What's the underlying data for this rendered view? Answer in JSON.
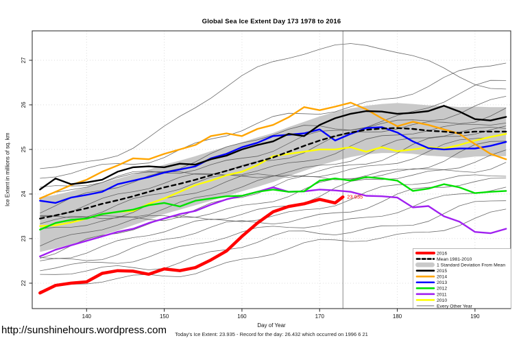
{
  "header": {
    "title": "Global Sea Ice Extent Day 173 1978 to 2016"
  },
  "footer": {
    "url": "http://sunshinehours.wordpress.com",
    "note": "Today's Ice Extent: 23.935  - Record for the day: 26.432 which occurred on 1996 6 21"
  },
  "chart_data": {
    "type": "line",
    "title": "Global Sea Ice Extent Day 173 1978 to 2016",
    "xlabel": "Day of Year",
    "ylabel": "Ice Extent in millions of sq. km",
    "x_ticks": [
      140,
      150,
      160,
      170,
      180,
      190
    ],
    "y_ticks": [
      22,
      23,
      24,
      25,
      26,
      27
    ],
    "xlim": [
      133,
      194.6
    ],
    "ylim": [
      21.43,
      27.66
    ],
    "grid": "dotted",
    "grid_color": "#dcdcdc",
    "frame_color": "#222222",
    "x": [
      134,
      136,
      138,
      140,
      142,
      144,
      146,
      148,
      150,
      152,
      154,
      156,
      158,
      160,
      162,
      164,
      166,
      168,
      170,
      172,
      174,
      176,
      178,
      180,
      182,
      184,
      186,
      188,
      190,
      192,
      194
    ],
    "vline": {
      "x": 173,
      "color": "#888888"
    },
    "annotation": {
      "text": "23.935",
      "x": 173,
      "y": 23.935,
      "color": "#ff0000"
    },
    "band": {
      "label": "1 Standard Deviation From Mean",
      "color": "#c9c9c9",
      "upper": [
        23.92,
        23.98,
        24.06,
        24.15,
        24.25,
        24.34,
        24.44,
        24.55,
        24.66,
        24.75,
        24.85,
        24.96,
        25.06,
        25.16,
        25.27,
        25.37,
        25.5,
        25.62,
        25.74,
        25.84,
        25.92,
        25.98,
        26.02,
        26.04,
        26.02,
        25.99,
        25.98,
        25.95,
        25.96,
        25.95,
        25.95
      ],
      "lower": [
        22.7,
        22.78,
        22.87,
        22.97,
        23.08,
        23.18,
        23.3,
        23.42,
        23.55,
        23.65,
        23.75,
        23.85,
        23.95,
        24.06,
        24.16,
        24.27,
        24.4,
        24.52,
        24.64,
        24.74,
        24.83,
        24.89,
        24.92,
        24.92,
        24.9,
        24.86,
        24.84,
        24.8,
        24.84,
        24.85,
        24.85
      ]
    },
    "series": [
      {
        "name": "2016",
        "color": "#ff0000",
        "width": 4.5,
        "x": [
          134,
          136,
          138,
          140,
          142,
          144,
          146,
          148,
          150,
          152,
          154,
          156,
          158,
          160,
          162,
          164,
          166,
          168,
          170,
          172,
          173
        ],
        "values": [
          21.78,
          21.95,
          22.0,
          22.03,
          22.22,
          22.28,
          22.27,
          22.2,
          22.32,
          22.28,
          22.35,
          22.52,
          22.72,
          23.05,
          23.35,
          23.6,
          23.72,
          23.78,
          23.88,
          23.8,
          23.935
        ]
      },
      {
        "name": "Mean 1981-2010",
        "color": "#000000",
        "width": 2.4,
        "dash": "6 5",
        "values": [
          23.45,
          23.52,
          23.6,
          23.68,
          23.78,
          23.86,
          23.95,
          24.05,
          24.15,
          24.23,
          24.32,
          24.42,
          24.52,
          24.62,
          24.72,
          24.82,
          24.95,
          25.08,
          25.2,
          25.3,
          25.38,
          25.44,
          25.47,
          25.48,
          25.46,
          25.42,
          25.4,
          25.37,
          25.4,
          25.4,
          25.4
        ]
      },
      {
        "name": "2015",
        "color": "#000000",
        "width": 2.4,
        "values": [
          24.1,
          24.35,
          24.22,
          24.26,
          24.32,
          24.5,
          24.6,
          24.62,
          24.6,
          24.68,
          24.66,
          24.78,
          24.86,
          25.0,
          25.1,
          25.18,
          25.35,
          25.3,
          25.55,
          25.7,
          25.8,
          25.86,
          25.85,
          25.8,
          25.82,
          25.86,
          25.98,
          25.85,
          25.68,
          25.65,
          25.73
        ]
      },
      {
        "name": "2014",
        "color": "#ffa500",
        "width": 2.4,
        "values": [
          23.9,
          24.05,
          24.2,
          24.32,
          24.5,
          24.64,
          24.8,
          24.78,
          24.9,
          25.0,
          25.1,
          25.3,
          25.36,
          25.3,
          25.46,
          25.55,
          25.72,
          25.95,
          25.88,
          25.96,
          26.05,
          25.9,
          25.7,
          25.52,
          25.62,
          25.55,
          25.45,
          25.35,
          25.12,
          24.9,
          24.78
        ]
      },
      {
        "name": "2013",
        "color": "#0000ff",
        "width": 2.4,
        "values": [
          23.85,
          23.8,
          23.92,
          23.98,
          24.05,
          24.22,
          24.3,
          24.38,
          24.48,
          24.55,
          24.62,
          24.8,
          24.9,
          25.05,
          25.15,
          25.3,
          25.33,
          25.36,
          25.45,
          25.2,
          25.35,
          25.48,
          25.5,
          25.38,
          25.18,
          25.03,
          25.0,
          25.02,
          25.02,
          25.08,
          25.17
        ]
      },
      {
        "name": "2012",
        "color": "#00e100",
        "width": 2.4,
        "values": [
          23.2,
          23.35,
          23.42,
          23.45,
          23.55,
          23.6,
          23.65,
          23.75,
          23.8,
          23.72,
          23.85,
          23.9,
          23.95,
          23.96,
          24.05,
          24.1,
          24.05,
          24.06,
          24.3,
          24.35,
          24.3,
          24.38,
          24.35,
          24.3,
          24.07,
          24.12,
          24.22,
          24.15,
          24.02,
          24.05,
          24.07
        ]
      },
      {
        "name": "2011",
        "color": "#a020f0",
        "width": 2.4,
        "values": [
          22.6,
          22.75,
          22.85,
          22.95,
          23.05,
          23.15,
          23.22,
          23.35,
          23.45,
          23.55,
          23.62,
          23.76,
          23.88,
          23.96,
          24.05,
          24.15,
          24.05,
          24.06,
          24.1,
          24.08,
          24.05,
          23.96,
          23.95,
          23.92,
          23.7,
          23.73,
          23.5,
          23.38,
          23.15,
          23.12,
          23.22
        ]
      },
      {
        "name": "2010",
        "color": "#ffff00",
        "width": 2.4,
        "values": [
          23.28,
          23.3,
          23.36,
          23.45,
          23.55,
          23.6,
          23.62,
          23.78,
          23.9,
          24.05,
          24.2,
          24.3,
          24.42,
          24.5,
          24.65,
          24.85,
          24.9,
          24.95,
          25.0,
          25.0,
          25.05,
          24.95,
          25.05,
          24.96,
          25.0,
          25.05,
          25.02,
          25.1,
          25.2,
          25.28,
          25.35
        ]
      }
    ],
    "background_years": {
      "label": "Every Other Year",
      "color": "#4d4d4d",
      "width": 0.8,
      "specs": [
        {
          "start": 21.75,
          "end": 23.55,
          "w": 0.1,
          "p": 0.3
        },
        {
          "start": 22.05,
          "end": 23.8,
          "w": 0.12,
          "p": 1.1
        },
        {
          "start": 22.25,
          "end": 24.1,
          "w": 0.09,
          "p": 2.0
        },
        {
          "start": 22.45,
          "end": 24.35,
          "w": 0.11,
          "p": 2.9
        },
        {
          "start": 22.6,
          "end": 24.55,
          "w": 0.1,
          "p": 3.8
        },
        {
          "start": 22.75,
          "end": 24.8,
          "w": 0.12,
          "p": 4.7
        },
        {
          "start": 22.9,
          "end": 24.95,
          "w": 0.1,
          "p": 5.5
        },
        {
          "start": 23.05,
          "end": 25.1,
          "w": 0.13,
          "p": 0.8
        },
        {
          "start": 23.2,
          "end": 25.3,
          "w": 0.1,
          "p": 1.6
        },
        {
          "start": 23.3,
          "end": 25.45,
          "w": 0.12,
          "p": 2.4
        },
        {
          "start": 23.45,
          "end": 25.55,
          "w": 0.11,
          "p": 3.3
        },
        {
          "start": 23.6,
          "end": 25.75,
          "w": 0.1,
          "p": 4.1
        },
        {
          "start": 23.75,
          "end": 25.95,
          "w": 0.12,
          "p": 5.0
        },
        {
          "start": 23.9,
          "end": 26.15,
          "w": 0.11,
          "p": 5.9
        },
        {
          "start": 24.05,
          "end": 26.45,
          "w": 0.1,
          "p": 0.5,
          "mid": 25.4,
          "peak_day": 170
        },
        {
          "start": 24.25,
          "end": 26.9,
          "w": 0.11,
          "p": 1.4
        },
        {
          "start": 24.55,
          "end": 26.3,
          "w": 0.08,
          "p": 2.2,
          "mid": 27.42,
          "peak_day": 175
        }
      ]
    },
    "legend": {
      "position": "bottom-right",
      "items": [
        {
          "label": "2016",
          "type": "line",
          "color": "#ff0000",
          "width": 4
        },
        {
          "label": "Mean 1981-2010",
          "type": "dashed",
          "color": "#000000",
          "width": 2.6
        },
        {
          "label": "1 Standard Deviation From Mean",
          "type": "band",
          "color": "#c9c9c9"
        },
        {
          "label": "2015",
          "type": "line",
          "color": "#000000",
          "width": 2.6
        },
        {
          "label": "2014",
          "type": "line",
          "color": "#ffa500",
          "width": 2.6
        },
        {
          "label": "2013",
          "type": "line",
          "color": "#0000ff",
          "width": 2.6
        },
        {
          "label": "2012",
          "type": "line",
          "color": "#00e100",
          "width": 2.6
        },
        {
          "label": "2011",
          "type": "line",
          "color": "#a020f0",
          "width": 2.6
        },
        {
          "label": "2010",
          "type": "line",
          "color": "#ffff00",
          "width": 2.6
        },
        {
          "label": "Every Other Year",
          "type": "line",
          "color": "#555555",
          "width": 0.8
        }
      ]
    }
  }
}
